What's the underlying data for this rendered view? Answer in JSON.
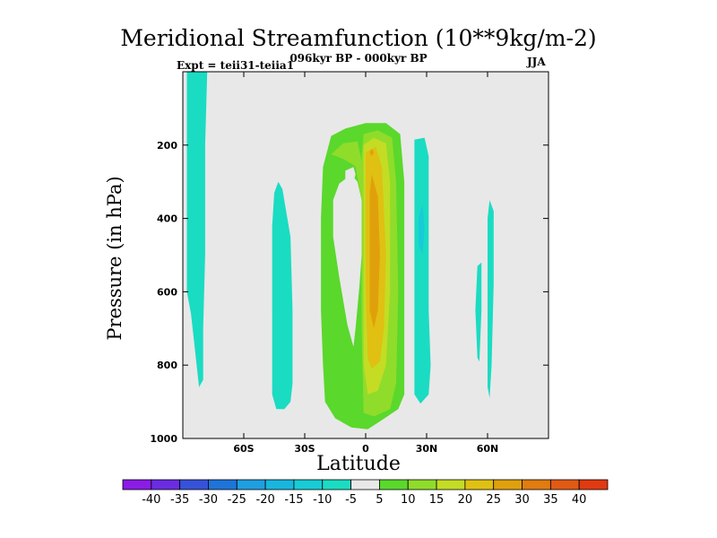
{
  "chart_data": {
    "type": "heatmap",
    "title": "Meridional Streamfunction (10**9kg/m-2)",
    "subtitle": "096kyr BP - 000kyr BP",
    "left_label": "Expt = teii31-teiia1",
    "right_label": "JJA",
    "xlabel": "Latitude",
    "ylabel": "Pressure (in hPa)",
    "xlim": [
      -90,
      90
    ],
    "ylim": [
      1000,
      0
    ],
    "x_ticks": [
      {
        "value": -60,
        "label": "60S"
      },
      {
        "value": -30,
        "label": "30S"
      },
      {
        "value": 0,
        "label": "0"
      },
      {
        "value": 30,
        "label": "30N"
      },
      {
        "value": 60,
        "label": "60N"
      }
    ],
    "y_ticks": [
      {
        "value": 200,
        "label": "200"
      },
      {
        "value": 400,
        "label": "400"
      },
      {
        "value": 600,
        "label": "600"
      },
      {
        "value": 800,
        "label": "800"
      },
      {
        "value": 1000,
        "label": "1000"
      }
    ],
    "background_color": "#e8e8e8",
    "colorbar": {
      "labels": [
        "-40",
        "-35",
        "-30",
        "-25",
        "-20",
        "-15",
        "-10",
        "-5",
        "5",
        "10",
        "15",
        "20",
        "25",
        "30",
        "35",
        "40"
      ],
      "colors": [
        "#8a1ce6",
        "#6a2ce0",
        "#3652d8",
        "#1e74d8",
        "#1f9ee0",
        "#18b6de",
        "#17ccd6",
        "#1adcc2",
        "#e8e8e8",
        "#5ad82c",
        "#90dc2a",
        "#c4dc24",
        "#e0c012",
        "#e0a00c",
        "#e07c10",
        "#e05a14",
        "#e03a10"
      ]
    },
    "regions": [
      {
        "name": "negative-band-high-south",
        "level": -5,
        "color": "#1adcc2",
        "points": [
          [
            -88,
            0
          ],
          [
            -78,
            0
          ],
          [
            -79,
            200
          ],
          [
            -79,
            500
          ],
          [
            -80,
            700
          ],
          [
            -80,
            840
          ],
          [
            -82,
            860
          ],
          [
            -84,
            760
          ],
          [
            -86,
            660
          ],
          [
            -88,
            600
          ]
        ]
      },
      {
        "name": "negative-band-mid-south",
        "level": -5,
        "color": "#1adcc2",
        "points": [
          [
            -45,
            330
          ],
          [
            -43,
            300
          ],
          [
            -41,
            320
          ],
          [
            -37,
            450
          ],
          [
            -36,
            650
          ],
          [
            -36,
            850
          ],
          [
            -37,
            900
          ],
          [
            -40,
            920
          ],
          [
            -44,
            920
          ],
          [
            -46,
            880
          ],
          [
            -46,
            650
          ],
          [
            -46,
            420
          ]
        ]
      },
      {
        "name": "negative-band-north",
        "level": -5,
        "color": "#1adcc2",
        "points": [
          [
            24,
            185
          ],
          [
            29,
            180
          ],
          [
            31,
            230
          ],
          [
            31,
            450
          ],
          [
            31,
            650
          ],
          [
            32,
            800
          ],
          [
            31,
            880
          ],
          [
            27,
            905
          ],
          [
            24,
            880
          ],
          [
            24,
            650
          ],
          [
            24,
            400
          ]
        ]
      },
      {
        "name": "negative-core-north",
        "level": -10,
        "color": "#17ccd6",
        "points": [
          [
            26,
            400
          ],
          [
            28,
            360
          ],
          [
            29,
            430
          ],
          [
            28,
            500
          ],
          [
            26,
            470
          ]
        ]
      },
      {
        "name": "negative-sliver-60n-a",
        "level": -5,
        "color": "#1adcc2",
        "points": [
          [
            55,
            530
          ],
          [
            57,
            520
          ],
          [
            57,
            650
          ],
          [
            56,
            790
          ],
          [
            55,
            780
          ],
          [
            54,
            650
          ]
        ]
      },
      {
        "name": "negative-sliver-60n-b",
        "level": -5,
        "color": "#1adcc2",
        "points": [
          [
            61,
            350
          ],
          [
            63,
            380
          ],
          [
            63,
            580
          ],
          [
            62,
            800
          ],
          [
            61,
            890
          ],
          [
            60,
            860
          ],
          [
            60,
            600
          ],
          [
            60,
            400
          ]
        ]
      },
      {
        "name": "positive-cell-5",
        "level": 5,
        "color": "#5ad82c",
        "points": [
          [
            -22,
            400
          ],
          [
            -21,
            260
          ],
          [
            -17,
            175
          ],
          [
            -10,
            155
          ],
          [
            0,
            140
          ],
          [
            10,
            140
          ],
          [
            17,
            170
          ],
          [
            19,
            300
          ],
          [
            19,
            600
          ],
          [
            19,
            880
          ],
          [
            16,
            920
          ],
          [
            8,
            950
          ],
          [
            1,
            975
          ],
          [
            -7,
            970
          ],
          [
            -15,
            945
          ],
          [
            -20,
            900
          ],
          [
            -21,
            800
          ],
          [
            -22,
            650
          ]
        ]
      },
      {
        "name": "inner-gap",
        "level": 0,
        "color": "#e8e8e8",
        "points": [
          [
            -16,
            350
          ],
          [
            -13,
            305
          ],
          [
            -7,
            280
          ],
          [
            -4,
            300
          ],
          [
            -2,
            350
          ],
          [
            -2,
            500
          ],
          [
            -3,
            580
          ],
          [
            -5,
            700
          ],
          [
            -6,
            750
          ],
          [
            -9,
            690
          ],
          [
            -13,
            560
          ],
          [
            -16,
            450
          ]
        ]
      },
      {
        "name": "gap-hole",
        "level": 0,
        "color": "#e8e8e8",
        "points": [
          [
            -10,
            270
          ],
          [
            -6,
            260
          ],
          [
            -5,
            280
          ],
          [
            -6,
            300
          ],
          [
            -7,
            320
          ],
          [
            -9,
            330
          ],
          [
            -10,
            300
          ]
        ]
      },
      {
        "name": "positive-cell-10",
        "level": 10,
        "color": "#90dc2a",
        "points": [
          [
            -17,
            225
          ],
          [
            -11,
            195
          ],
          [
            -4,
            190
          ],
          [
            -2,
            245
          ],
          [
            -2,
            350
          ],
          [
            -5,
            258
          ],
          [
            -11,
            238
          ]
        ]
      },
      {
        "name": "positive-cell-10-main",
        "level": 10,
        "color": "#90dc2a",
        "points": [
          [
            -1,
            170
          ],
          [
            6,
            160
          ],
          [
            13,
            180
          ],
          [
            15,
            300
          ],
          [
            16,
            600
          ],
          [
            15,
            850
          ],
          [
            12,
            920
          ],
          [
            4,
            940
          ],
          [
            -1,
            930
          ],
          [
            -2,
            700
          ],
          [
            -2,
            400
          ],
          [
            -2,
            230
          ]
        ]
      },
      {
        "name": "positive-cell-15",
        "level": 15,
        "color": "#c4dc24",
        "points": [
          [
            -1,
            200
          ],
          [
            4,
            180
          ],
          [
            10,
            195
          ],
          [
            12,
            300
          ],
          [
            12,
            600
          ],
          [
            10,
            800
          ],
          [
            6,
            870
          ],
          [
            1,
            880
          ],
          [
            -1,
            800
          ],
          [
            -1,
            500
          ],
          [
            -1,
            300
          ]
        ]
      },
      {
        "name": "positive-cell-20",
        "level": 20,
        "color": "#e0c012",
        "points": [
          [
            0,
            220
          ],
          [
            5,
            205
          ],
          [
            8,
            260
          ],
          [
            10,
            500
          ],
          [
            9,
            700
          ],
          [
            7,
            790
          ],
          [
            3,
            810
          ],
          [
            1,
            780
          ],
          [
            0,
            600
          ],
          [
            0,
            400
          ]
        ]
      },
      {
        "name": "positive-cell-25",
        "level": 25,
        "color": "#e0a00c",
        "points": [
          [
            3,
            280
          ],
          [
            6,
            340
          ],
          [
            7,
            500
          ],
          [
            6,
            650
          ],
          [
            4,
            700
          ],
          [
            2,
            650
          ],
          [
            2,
            450
          ],
          [
            2,
            330
          ]
        ]
      },
      {
        "name": "positive-dot-25",
        "level": 25,
        "color": "#e0a00c",
        "points": [
          [
            3,
            210
          ],
          [
            4,
            220
          ],
          [
            3,
            230
          ],
          [
            2,
            220
          ]
        ]
      }
    ]
  }
}
